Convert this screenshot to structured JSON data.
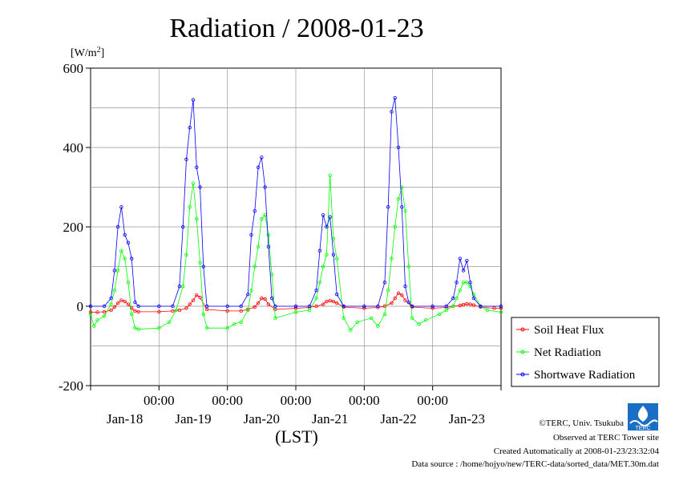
{
  "chart_data": {
    "type": "line",
    "title": "Radiation / 2008-01-23",
    "ylabel_unit": "[W/m",
    "ylabel_unit_sup": "2",
    "ylabel_unit_end": "]",
    "xlabel": "(LST)",
    "ylim": [
      -200,
      600
    ],
    "yticks": [
      "600",
      "400",
      "200",
      "0",
      "-200"
    ],
    "y_tick_values": [
      600,
      400,
      200,
      0,
      -200
    ],
    "grid": true,
    "x_time_labels": [
      "00:00",
      "00:00",
      "00:00",
      "00:00",
      "00:00"
    ],
    "x_day_labels": [
      "Jan-18",
      "Jan-19",
      "Jan-20",
      "Jan-21",
      "Jan-22",
      "Jan-23"
    ],
    "x_range_days": [
      0,
      6
    ],
    "legend_position": "bottom-right-outside",
    "series": [
      {
        "name": "Soil Heat Flux",
        "color": "#ff0000",
        "x": [
          0,
          0.1,
          0.2,
          0.3,
          0.35,
          0.4,
          0.45,
          0.5,
          0.55,
          0.6,
          0.65,
          0.7,
          1.0,
          1.2,
          1.3,
          1.4,
          1.45,
          1.5,
          1.55,
          1.6,
          1.7,
          2.0,
          2.2,
          2.3,
          2.4,
          2.45,
          2.5,
          2.55,
          2.6,
          2.7,
          3.0,
          3.2,
          3.3,
          3.4,
          3.45,
          3.5,
          3.55,
          3.6,
          3.7,
          4.0,
          4.2,
          4.3,
          4.4,
          4.45,
          4.5,
          4.55,
          4.6,
          4.7,
          5.0,
          5.2,
          5.3,
          5.4,
          5.45,
          5.5,
          5.55,
          5.6,
          5.7,
          5.9,
          6.0
        ],
        "y": [
          -15,
          -15,
          -14,
          -10,
          -2,
          8,
          15,
          12,
          5,
          -5,
          -12,
          -14,
          -14,
          -12,
          -10,
          -5,
          5,
          15,
          28,
          22,
          -8,
          -12,
          -12,
          -8,
          -2,
          8,
          20,
          18,
          5,
          -8,
          -5,
          -3,
          0,
          5,
          12,
          14,
          12,
          8,
          -2,
          -5,
          -3,
          0,
          8,
          20,
          33,
          28,
          15,
          -2,
          -5,
          -3,
          0,
          2,
          4,
          6,
          5,
          3,
          -2,
          -5,
          -5
        ]
      },
      {
        "name": "Net Radiation",
        "color": "#00ff00",
        "x": [
          0,
          0.05,
          0.1,
          0.2,
          0.3,
          0.35,
          0.4,
          0.45,
          0.5,
          0.55,
          0.6,
          0.65,
          0.7,
          1.0,
          1.15,
          1.25,
          1.35,
          1.4,
          1.45,
          1.5,
          1.55,
          1.6,
          1.65,
          1.7,
          2.0,
          2.1,
          2.2,
          2.3,
          2.35,
          2.4,
          2.45,
          2.5,
          2.55,
          2.6,
          2.65,
          2.7,
          3.0,
          3.2,
          3.3,
          3.35,
          3.4,
          3.45,
          3.5,
          3.55,
          3.6,
          3.7,
          3.8,
          3.9,
          4.1,
          4.2,
          4.3,
          4.35,
          4.4,
          4.45,
          4.5,
          4.55,
          4.6,
          4.65,
          4.7,
          4.8,
          4.9,
          5.1,
          5.2,
          5.3,
          5.35,
          5.4,
          5.45,
          5.5,
          5.55,
          5.6,
          5.7,
          5.8,
          6.0
        ],
        "y": [
          -20,
          -50,
          -35,
          -25,
          5,
          40,
          90,
          140,
          120,
          60,
          -20,
          -55,
          -58,
          -55,
          -40,
          -10,
          50,
          130,
          250,
          310,
          220,
          110,
          -20,
          -55,
          -55,
          -45,
          -40,
          -10,
          40,
          100,
          150,
          220,
          230,
          180,
          80,
          -30,
          -15,
          -10,
          20,
          60,
          100,
          130,
          330,
          170,
          120,
          -30,
          -60,
          -40,
          -30,
          -50,
          -20,
          40,
          120,
          200,
          270,
          300,
          240,
          100,
          -30,
          -45,
          -35,
          -20,
          -10,
          0,
          20,
          40,
          60,
          60,
          50,
          30,
          0,
          -10,
          -15
        ]
      },
      {
        "name": "Shortwave Radiation",
        "color": "#0000ff",
        "x": [
          0,
          0.2,
          0.3,
          0.35,
          0.4,
          0.45,
          0.5,
          0.55,
          0.6,
          0.65,
          0.7,
          1.0,
          1.2,
          1.3,
          1.35,
          1.4,
          1.45,
          1.5,
          1.55,
          1.6,
          1.65,
          1.7,
          2.0,
          2.2,
          2.3,
          2.35,
          2.4,
          2.45,
          2.5,
          2.55,
          2.6,
          2.65,
          2.7,
          3.0,
          3.2,
          3.3,
          3.35,
          3.4,
          3.45,
          3.5,
          3.55,
          3.6,
          3.7,
          4.0,
          4.2,
          4.3,
          4.35,
          4.4,
          4.45,
          4.5,
          4.55,
          4.6,
          4.65,
          4.7,
          5.0,
          5.2,
          5.3,
          5.35,
          5.4,
          5.45,
          5.5,
          5.55,
          5.6,
          5.7,
          6.0
        ],
        "y": [
          0,
          0,
          20,
          90,
          200,
          250,
          180,
          160,
          120,
          10,
          0,
          0,
          0,
          50,
          200,
          370,
          450,
          520,
          350,
          300,
          100,
          0,
          0,
          0,
          30,
          180,
          240,
          350,
          375,
          300,
          150,
          20,
          0,
          0,
          0,
          40,
          140,
          230,
          200,
          225,
          130,
          30,
          0,
          0,
          0,
          60,
          250,
          490,
          525,
          400,
          250,
          50,
          10,
          0,
          0,
          0,
          20,
          60,
          120,
          90,
          115,
          60,
          20,
          0,
          0
        ]
      }
    ]
  },
  "legend": {
    "items": [
      "Soil Heat Flux",
      "Net Radiation",
      "Shortwave Radiation"
    ]
  },
  "footer": {
    "copyright": "©TERC, Univ. Tsukuba",
    "observed": "Observed at TERC Tower site",
    "created": "Created Automatically at 2008-01-23/23:32:04",
    "source": "Data source : /home/hojyo/new/TERC-data/sorted_data/MET.30m.dat",
    "logo_text": "TERC"
  }
}
